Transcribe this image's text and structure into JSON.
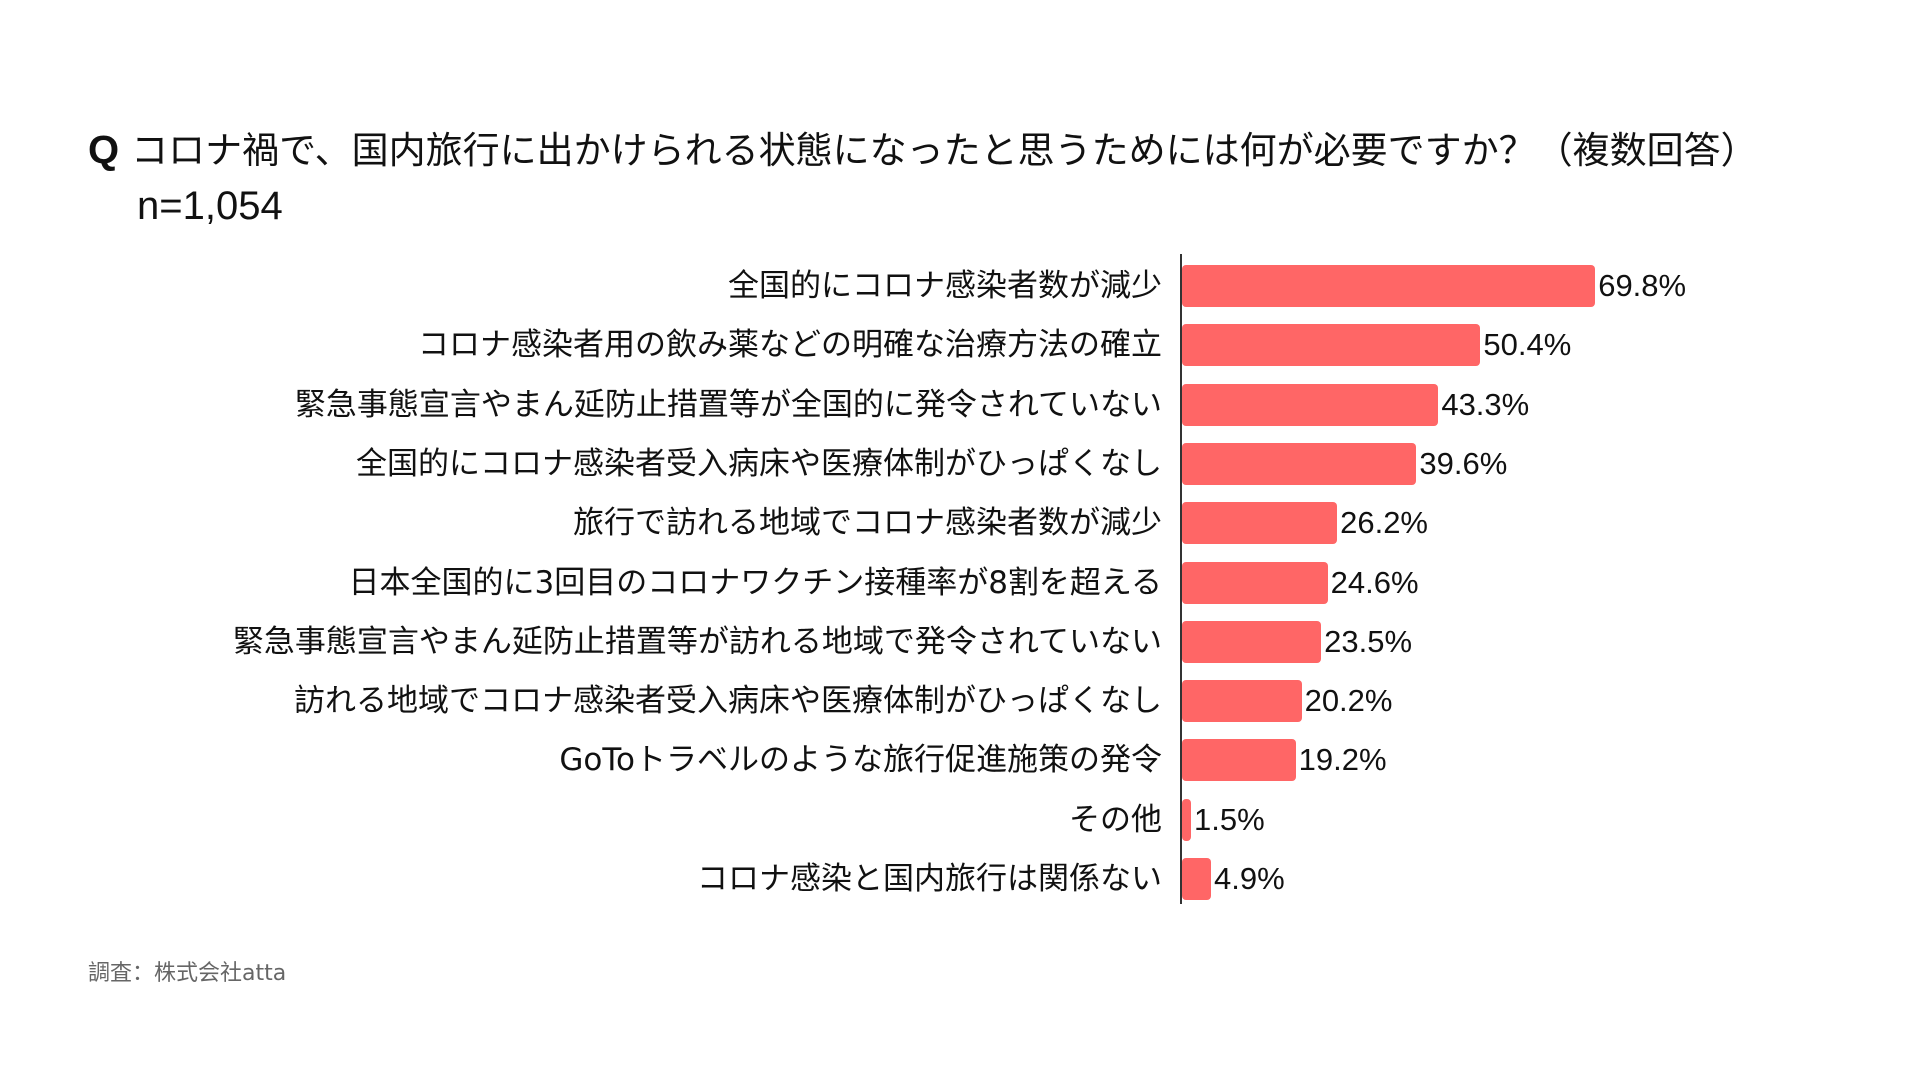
{
  "title": {
    "q_mark": "Q",
    "question": "コロナ禍で、国内旅行に出かけられる状態になったと思うためには何が必要ですか？（複数回答）",
    "sample": "n=1,054"
  },
  "source": "調査：株式会社atta",
  "colors": {
    "bar": "#ff6666",
    "axis": "#333333",
    "text": "#111111",
    "source": "#666666"
  },
  "chart_data": {
    "type": "bar",
    "orientation": "horizontal",
    "title": "Q コロナ禍で、国内旅行に出かけられる状態になったと思うためには何が必要ですか？（複数回答） n=1,054",
    "xlabel": "",
    "ylabel": "",
    "unit": "%",
    "grid": false,
    "legend": null,
    "xlim": [
      0,
      70
    ],
    "categories": [
      "全国的にコロナ感染者数が減少",
      "コロナ感染者用の飲み薬などの明確な治療方法の確立",
      "緊急事態宣言やまん延防止措置等が全国的に発令されていない",
      "全国的にコロナ感染者受入病床や医療体制がひっぱくなし",
      "旅行で訪れる地域でコロナ感染者数が減少",
      "日本全国的に3回目のコロナワクチン接種率が8割を超える",
      "緊急事態宣言やまん延防止措置等が訪れる地域で発令されていない",
      "訪れる地域でコロナ感染者受入病床や医療体制がひっぱくなし",
      "GoToトラベルのような旅行促進施策の発令",
      "その他",
      "コロナ感染と国内旅行は関係ない"
    ],
    "values": [
      69.8,
      50.4,
      43.3,
      39.6,
      26.2,
      24.6,
      23.5,
      20.2,
      19.2,
      1.5,
      4.9
    ],
    "value_labels": [
      "69.8%",
      "50.4%",
      "43.3%",
      "39.6%",
      "26.2%",
      "24.6%",
      "23.5%",
      "20.2%",
      "19.2%",
      "1.5%",
      "4.9%"
    ]
  }
}
